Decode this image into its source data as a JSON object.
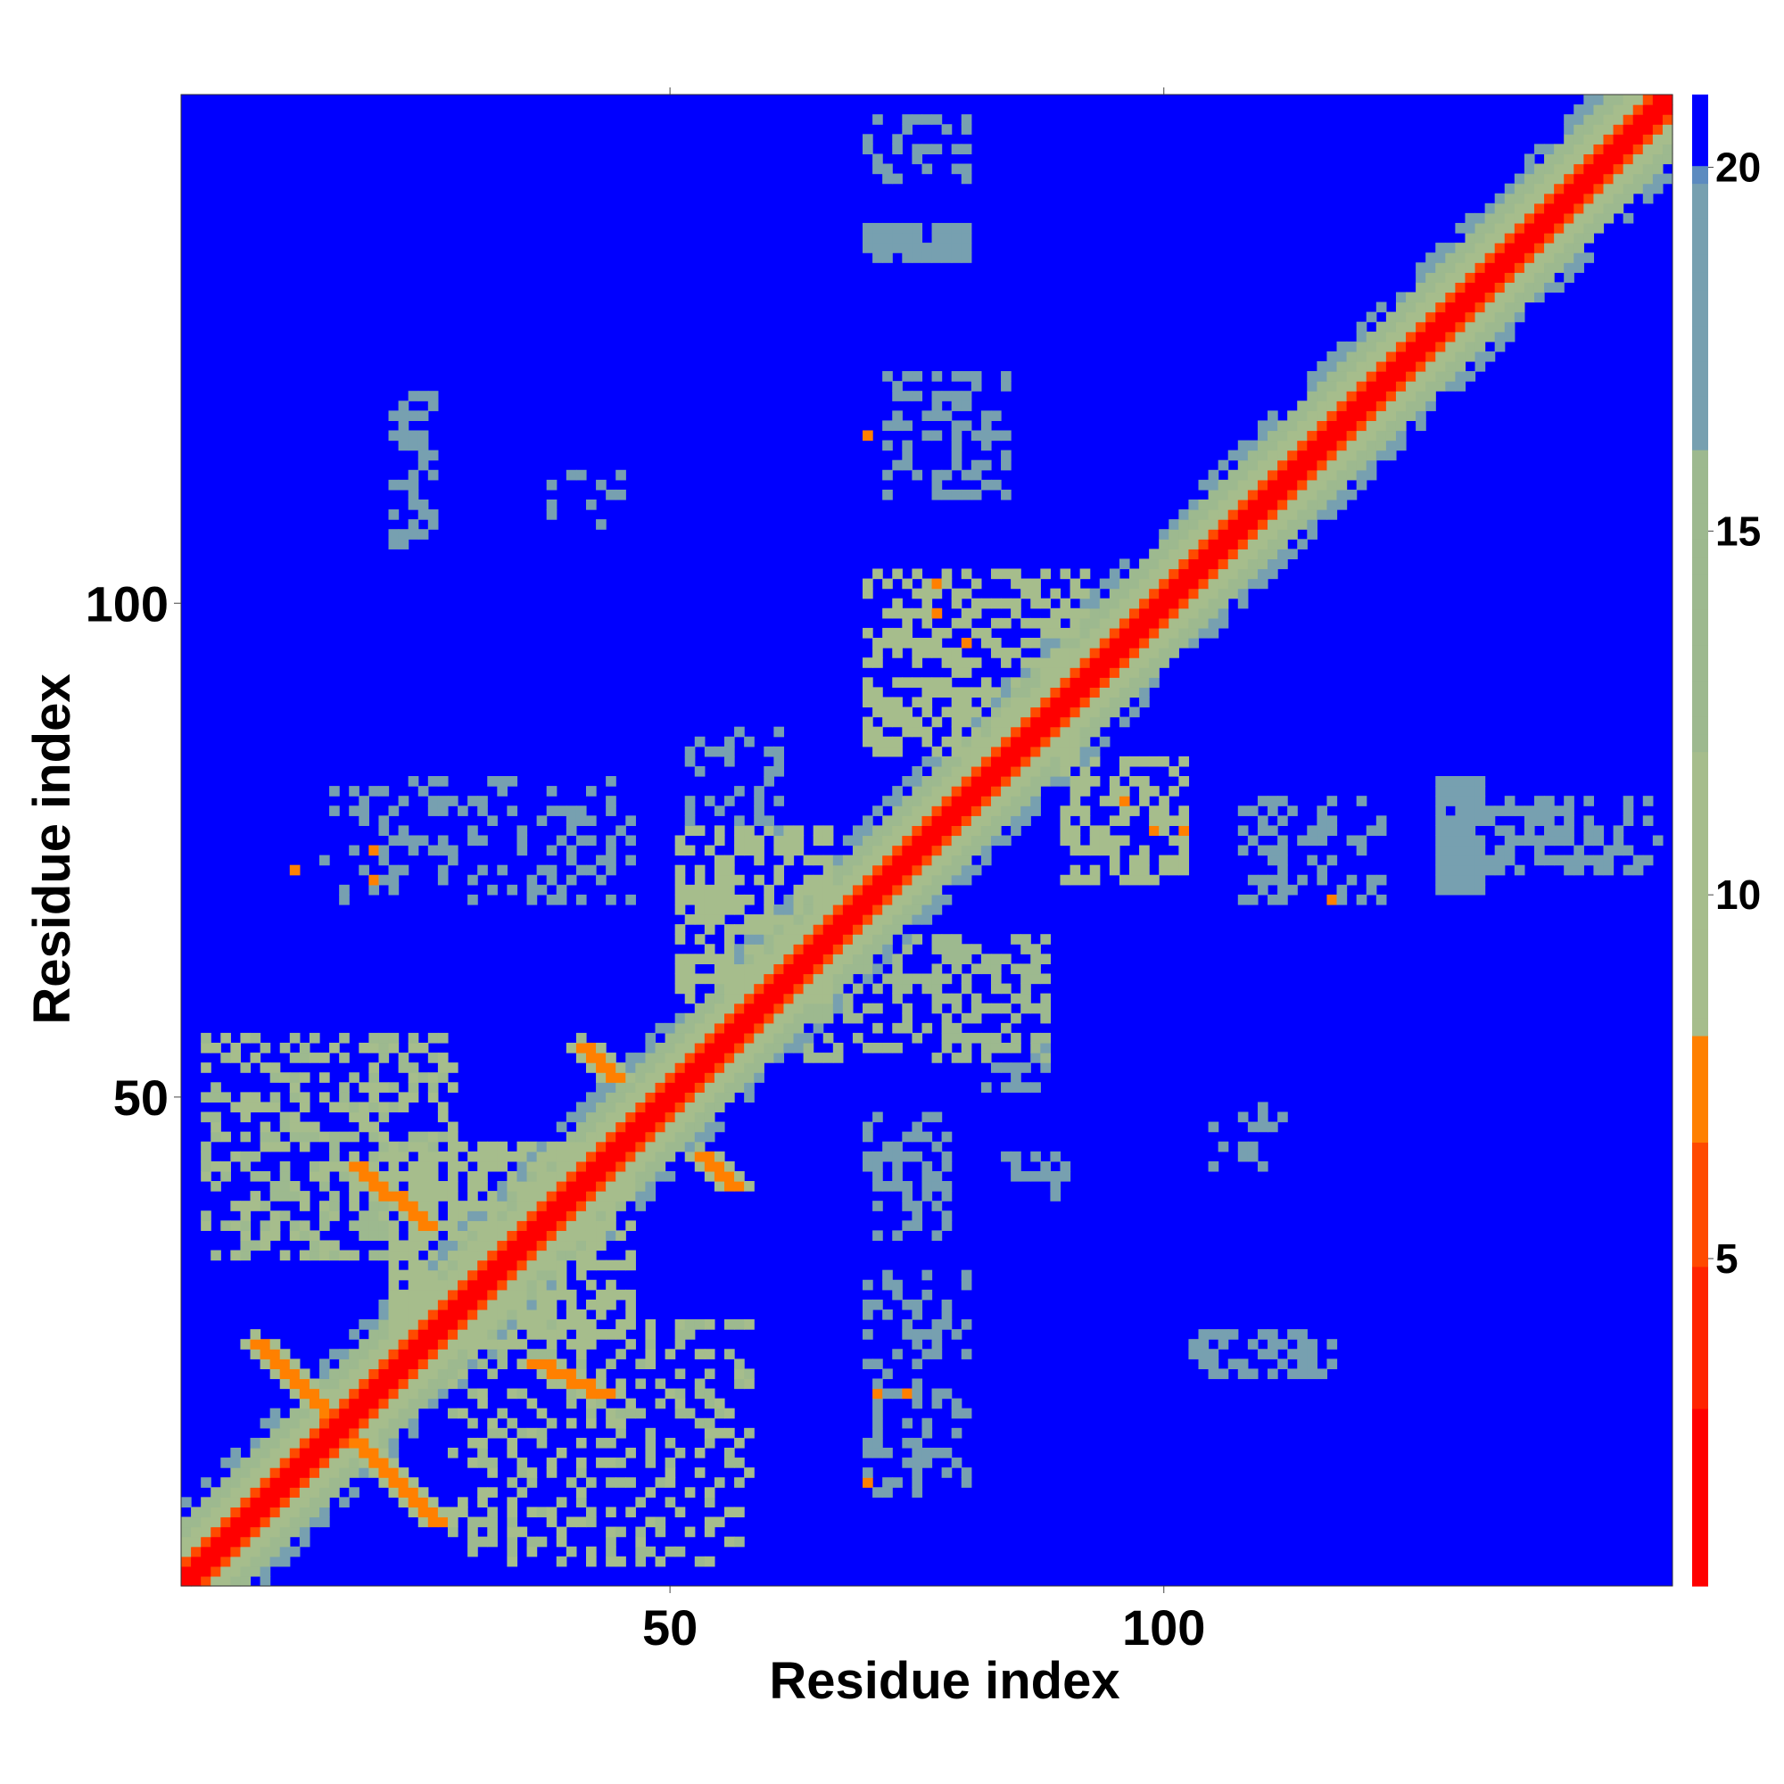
{
  "chart_data": {
    "type": "heatmap",
    "title": "",
    "xlabel": "Residue index",
    "ylabel": "Residue index",
    "xlim": [
      1,
      151
    ],
    "ylim": [
      1,
      151
    ],
    "x_ticks": [
      50,
      100
    ],
    "y_ticks": [
      50,
      100
    ],
    "colorbar": {
      "ticks": [
        5,
        10,
        15,
        20
      ],
      "range": [
        0.5,
        21
      ],
      "scale": [
        {
          "value": 0.5,
          "color": "#ff0000"
        },
        {
          "value": 3,
          "color": "#ff2400"
        },
        {
          "value": 5,
          "color": "#ff4a00"
        },
        {
          "value": 6.5,
          "color": "#ff8000"
        },
        {
          "value": 8,
          "color": "#ffa500"
        },
        {
          "value": 8.01,
          "color": "#a6bd8c"
        },
        {
          "value": 12,
          "color": "#9db98f"
        },
        {
          "value": 16,
          "color": "#77a0b0"
        },
        {
          "value": 19.9,
          "color": "#5c8bc0"
        },
        {
          "value": 20,
          "color": "#0000ff"
        }
      ]
    },
    "background_value": 21,
    "matrix_size": 151,
    "features": {
      "diagonal_band": {
        "from": 1,
        "to": 151,
        "core_value": 1.5,
        "inner_width": 1.2,
        "orange_width": 2.5,
        "green_width": 6,
        "blue_width": 8
      },
      "off_diagonal_streaks": [
        {
          "x0": 8,
          "y0": 25,
          "x1": 26,
          "y1": 7,
          "value": 7
        },
        {
          "x0": 36,
          "y0": 23,
          "x1": 43,
          "y1": 20,
          "value": 7
        },
        {
          "x0": 18,
          "y0": 43,
          "x1": 25,
          "y1": 37,
          "value": 7
        },
        {
          "x0": 53,
          "y0": 44,
          "x1": 56,
          "y1": 41,
          "value": 7
        },
        {
          "x0": 41,
          "y0": 55,
          "x1": 44,
          "y1": 52,
          "value": 7
        }
      ],
      "contact_patches": [
        {
          "x": [
            3,
            28
          ],
          "y": [
            34,
            56
          ],
          "value": 12,
          "density": 0.45
        },
        {
          "x": [
            28,
            58
          ],
          "y": [
            3,
            27
          ],
          "value": 12,
          "density": 0.35
        },
        {
          "x": [
            22,
            46
          ],
          "y": [
            25,
            45
          ],
          "value": 11,
          "density": 0.6
        },
        {
          "x": [
            51,
            66
          ],
          "y": [
            60,
            77
          ],
          "value": 11,
          "density": 0.55
        },
        {
          "x": [
            70,
            92
          ],
          "y": [
            85,
            103
          ],
          "value": 11,
          "density": 0.5
        },
        {
          "x": [
            90,
            102
          ],
          "y": [
            72,
            84
          ],
          "value": 11,
          "density": 0.55
        },
        {
          "x": [
            64,
            88
          ],
          "y": [
            54,
            66
          ],
          "value": 13,
          "density": 0.45
        },
        {
          "x": [
            70,
            80
          ],
          "y": [
            10,
            32
          ],
          "value": 18,
          "density": 0.35
        },
        {
          "x": [
            70,
            78
          ],
          "y": [
            36,
            48
          ],
          "value": 18,
          "density": 0.35
        },
        {
          "x": [
            103,
            117
          ],
          "y": [
            22,
            26
          ],
          "value": 18,
          "density": 0.5
        },
        {
          "x": [
            105,
            113
          ],
          "y": [
            43,
            49
          ],
          "value": 18,
          "density": 0.35
        },
        {
          "x": [
            108,
            122
          ],
          "y": [
            70,
            80
          ],
          "value": 18,
          "density": 0.35
        },
        {
          "x": [
            130,
            150
          ],
          "y": [
            73,
            80
          ],
          "value": 18,
          "density": 0.4
        },
        {
          "x": [
            128,
            132
          ],
          "y": [
            71,
            82
          ],
          "value": 17,
          "density": 0.95
        },
        {
          "x": [
            70,
            80
          ],
          "y": [
            143,
            149
          ],
          "value": 18,
          "density": 0.35
        },
        {
          "x": [
            70,
            80
          ],
          "y": [
            135,
            138
          ],
          "value": 18,
          "density": 0.95
        },
        {
          "x": [
            72,
            84
          ],
          "y": [
            111,
            123
          ],
          "value": 18,
          "density": 0.4
        },
        {
          "x": [
            22,
            26
          ],
          "y": [
            106,
            121
          ],
          "value": 17,
          "density": 0.5
        },
        {
          "x": [
            38,
            45
          ],
          "y": [
            108,
            113
          ],
          "value": 18,
          "density": 0.35
        },
        {
          "x": [
            15,
            46
          ],
          "y": [
            70,
            82
          ],
          "value": 18,
          "density": 0.3
        },
        {
          "x": [
            52,
            61
          ],
          "y": [
            77,
            87
          ],
          "value": 18,
          "density": 0.35
        },
        {
          "x": [
            82,
            88
          ],
          "y": [
            51,
            56
          ],
          "value": 17,
          "density": 0.5
        },
        {
          "x": [
            84,
            90
          ],
          "y": [
            40,
            44
          ],
          "value": 18,
          "density": 0.45
        }
      ],
      "isolated_contacts": [
        {
          "x": 12,
          "y": 73,
          "value": 6.5
        },
        {
          "x": 20,
          "y": 75,
          "value": 7
        },
        {
          "x": 20,
          "y": 72,
          "value": 7
        },
        {
          "x": 70,
          "y": 117,
          "value": 6.5
        },
        {
          "x": 70,
          "y": 11,
          "value": 6.5
        },
        {
          "x": 71,
          "y": 20,
          "value": 7
        },
        {
          "x": 74,
          "y": 20,
          "value": 7
        },
        {
          "x": 77,
          "y": 102,
          "value": 6.5
        },
        {
          "x": 77,
          "y": 99,
          "value": 6.5
        },
        {
          "x": 80,
          "y": 96,
          "value": 6.5
        },
        {
          "x": 96,
          "y": 80,
          "value": 6.5
        },
        {
          "x": 99,
          "y": 77,
          "value": 6.5
        },
        {
          "x": 102,
          "y": 77,
          "value": 6.5
        },
        {
          "x": 117,
          "y": 70,
          "value": 6.5
        },
        {
          "x": 41,
          "y": 55,
          "value": 6.5
        },
        {
          "x": 44,
          "y": 52,
          "value": 6.5
        }
      ]
    }
  }
}
